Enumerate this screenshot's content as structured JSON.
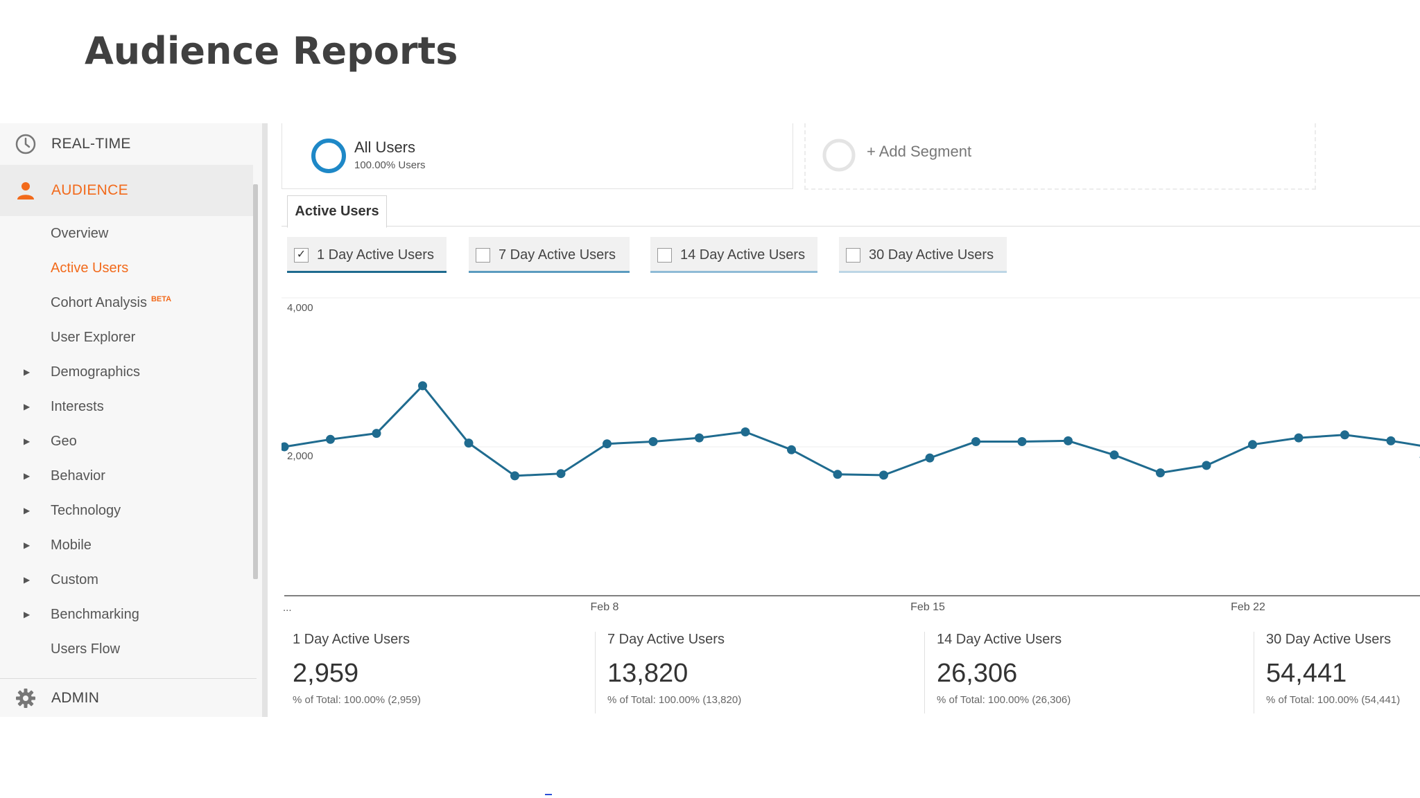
{
  "slide": {
    "title": "Audience Reports"
  },
  "sidebar": {
    "realtime_label": "REAL-TIME",
    "audience_label": "AUDIENCE",
    "admin_label": "ADMIN",
    "beta_badge": "BETA",
    "items": [
      {
        "label": "Overview",
        "caret": false,
        "active": false
      },
      {
        "label": "Active Users",
        "caret": false,
        "active": true
      },
      {
        "label": "Cohort Analysis",
        "caret": false,
        "active": false,
        "badge": true
      },
      {
        "label": "User Explorer",
        "caret": false,
        "active": false
      },
      {
        "label": "Demographics",
        "caret": true,
        "active": false
      },
      {
        "label": "Interests",
        "caret": true,
        "active": false
      },
      {
        "label": "Geo",
        "caret": true,
        "active": false
      },
      {
        "label": "Behavior",
        "caret": true,
        "active": false
      },
      {
        "label": "Technology",
        "caret": true,
        "active": false
      },
      {
        "label": "Mobile",
        "caret": true,
        "active": false
      },
      {
        "label": "Custom",
        "caret": true,
        "active": false
      },
      {
        "label": "Benchmarking",
        "caret": true,
        "active": false
      },
      {
        "label": "Users Flow",
        "caret": false,
        "active": false
      }
    ],
    "accent_color": "#f26a1b"
  },
  "segments": {
    "all_users_name": "All Users",
    "all_users_sub": "100.00% Users",
    "add_segment_label": "+ Add Segment"
  },
  "tabs": {
    "active_label": "Active Users"
  },
  "metric_chips": [
    {
      "label": "1 Day Active Users",
      "checked": true,
      "bar_color": "#1f6b8f"
    },
    {
      "label": "7 Day Active Users",
      "checked": false,
      "bar_color": "#5b9bbf"
    },
    {
      "label": "14 Day Active Users",
      "checked": false,
      "bar_color": "#8fbbd6"
    },
    {
      "label": "30 Day Active Users",
      "checked": false,
      "bar_color": "#bdd6e6"
    }
  ],
  "chart_data": {
    "type": "line",
    "series": [
      {
        "values": [
          2000,
          2100,
          2180,
          2820,
          2050,
          1610,
          1640,
          2040,
          2070,
          2120,
          2200,
          1960,
          1630,
          1620,
          1850,
          2070,
          2070,
          2080,
          1890,
          1650,
          1750,
          2030,
          2120,
          2160,
          2080,
          1980
        ]
      }
    ],
    "x_tick_labels": [
      "...",
      "Feb 8",
      "Feb 15",
      "Feb 22"
    ],
    "y_tick_labels": [
      "4,000",
      "2,000"
    ],
    "ylim": [
      0,
      4000
    ],
    "line_color": "#1f6b8f",
    "grid": true
  },
  "kpis": [
    {
      "label": "1 Day Active Users",
      "value": "2,959",
      "sub": "% of Total: 100.00% (2,959)"
    },
    {
      "label": "7 Day Active Users",
      "value": "13,820",
      "sub": "% of Total: 100.00% (13,820)"
    },
    {
      "label": "14 Day Active Users",
      "value": "26,306",
      "sub": "% of Total: 100.00% (26,306)"
    },
    {
      "label": "30 Day Active Users",
      "value": "54,441",
      "sub": "% of Total: 100.00% (54,441)"
    }
  ]
}
